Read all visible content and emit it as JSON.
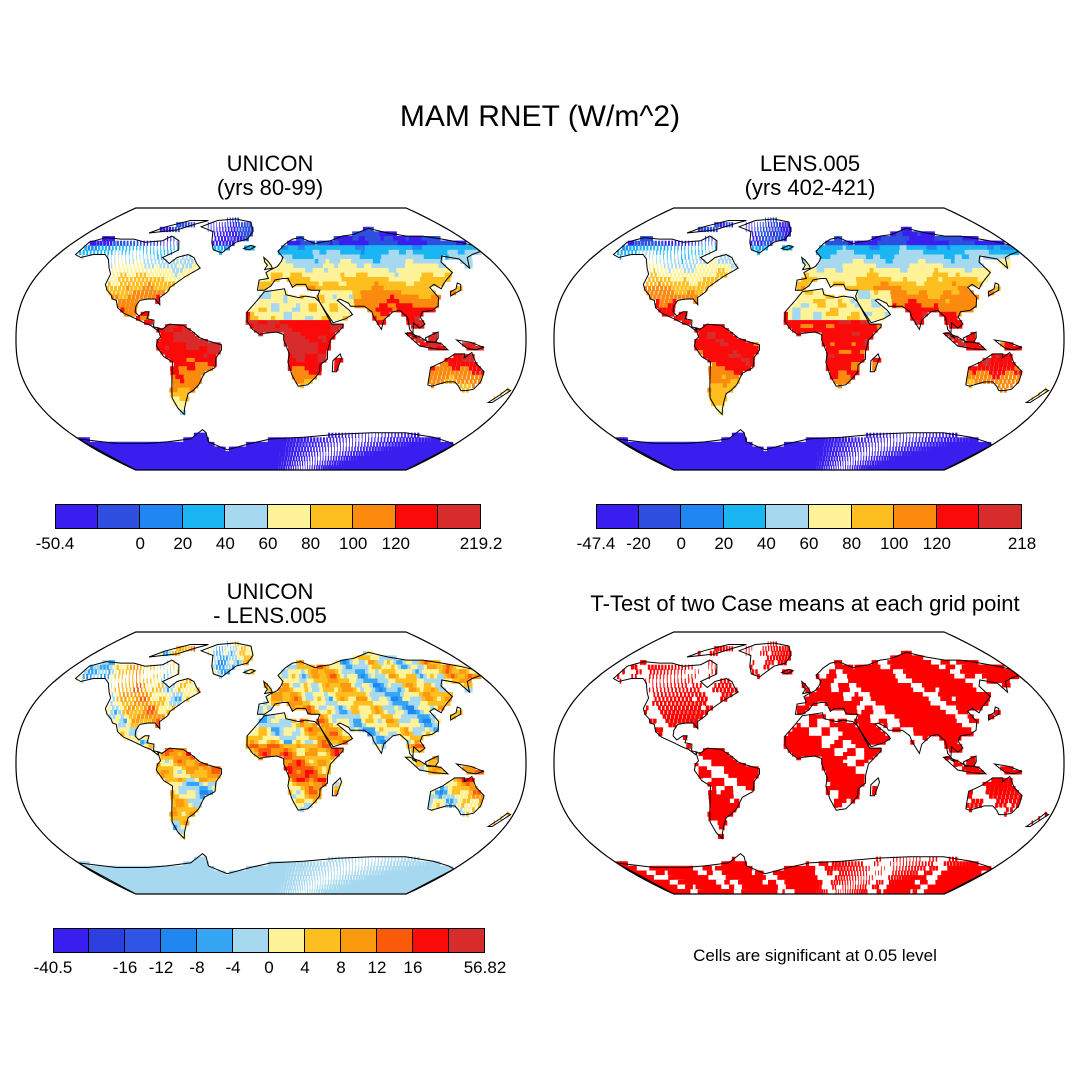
{
  "title": "MAM RNET (W/m^2)",
  "panels": {
    "unicon": {
      "title_lines": [
        "UNICON",
        "(yrs 80-99)"
      ]
    },
    "lens": {
      "title_lines": [
        "LENS.005",
        "(yrs 402-421)"
      ]
    },
    "diff": {
      "title_lines": [
        "UNICON",
        "- LENS.005"
      ]
    },
    "ttest": {
      "title_lines": [
        "T-Test of two Case means at each grid point"
      ]
    }
  },
  "colorbars": {
    "unicon": {
      "colors": [
        "#3a1ef0",
        "#2e4fe0",
        "#1f86f2",
        "#1ab6f4",
        "#a6d8f0",
        "#fff39a",
        "#fdbe1f",
        "#fb8a0f",
        "#fb0a0a",
        "#d82b2b"
      ],
      "labels": [
        "-50.4",
        "0",
        "20",
        "40",
        "60",
        "80",
        "100",
        "120",
        "219.2"
      ]
    },
    "lens": {
      "colors": [
        "#3a1ef0",
        "#2e4fe0",
        "#1f86f2",
        "#1ab6f4",
        "#a6d8f0",
        "#fff39a",
        "#fdbe1f",
        "#fb8a0f",
        "#fb0a0a",
        "#d82b2b"
      ],
      "labels": [
        "-47.4",
        "-20",
        "0",
        "20",
        "40",
        "60",
        "80",
        "100",
        "120",
        "218"
      ]
    },
    "diff": {
      "colors": [
        "#3a1ef0",
        "#2e3fe0",
        "#2e55e6",
        "#1f86f2",
        "#36a6f4",
        "#a6d8f0",
        "#fff39a",
        "#fdbe1f",
        "#fb9a0f",
        "#fb5a0a",
        "#fb0a0a",
        "#d82b2b"
      ],
      "labels": [
        "-40.5",
        "-16",
        "-12",
        "-8",
        "-4",
        "0",
        "4",
        "8",
        "12",
        "16",
        "56.82"
      ]
    }
  },
  "ttest_note": "Cells are significant at 0.05 level"
}
